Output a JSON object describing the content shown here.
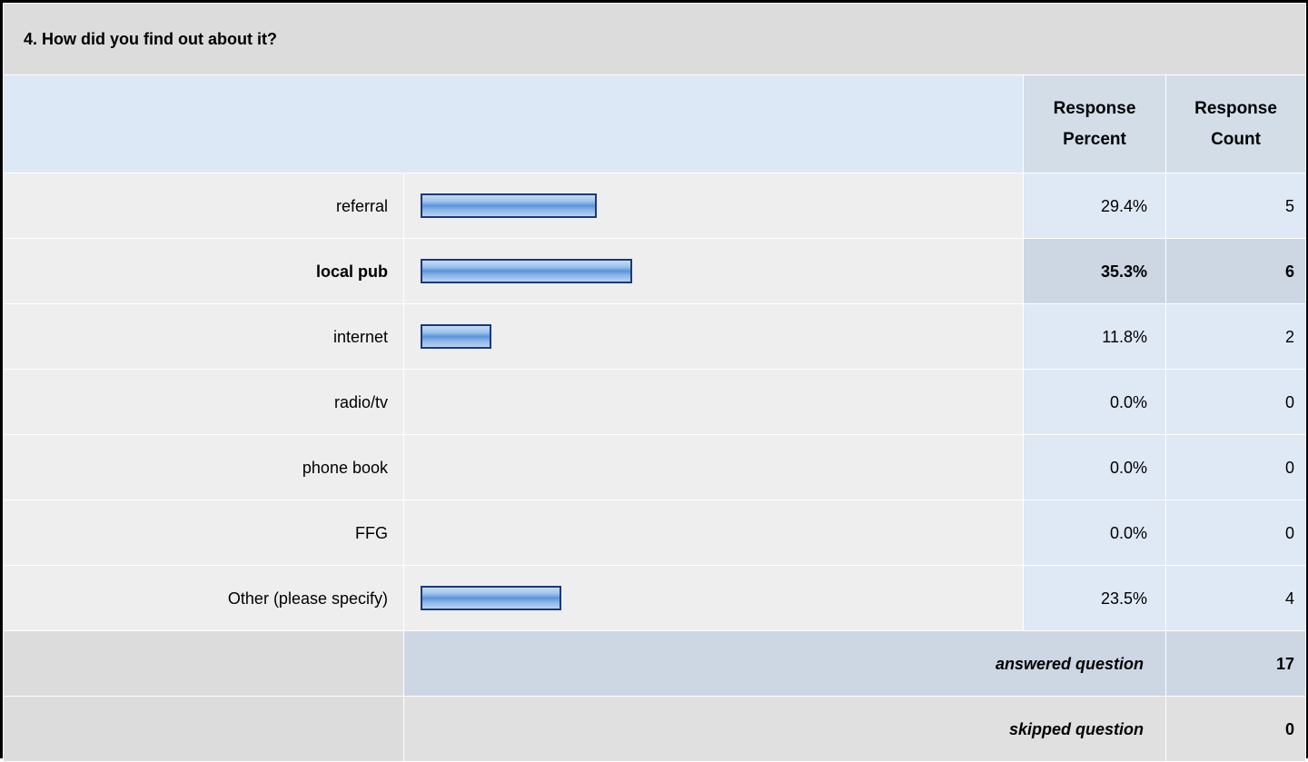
{
  "question_title": "4. How did you find out about it?",
  "columns": {
    "percent": [
      "Response",
      "Percent"
    ],
    "count": [
      "Response",
      "Count"
    ]
  },
  "rows": [
    {
      "label": "referral",
      "percent": "29.4%",
      "count": "5"
    },
    {
      "label": "local pub",
      "percent": "35.3%",
      "count": "6"
    },
    {
      "label": "internet",
      "percent": "11.8%",
      "count": "2"
    },
    {
      "label": "radio/tv",
      "percent": "0.0%",
      "count": "0"
    },
    {
      "label": "phone book",
      "percent": "0.0%",
      "count": "0"
    },
    {
      "label": "FFG",
      "percent": "0.0%",
      "count": "0"
    },
    {
      "label": "Other (please specify)",
      "percent": "23.5%",
      "count": "4"
    }
  ],
  "footer": {
    "answered_label": "answered question",
    "answered_value": "17",
    "skipped_label": "skipped question",
    "skipped_value": "0"
  },
  "colors": {
    "bar_border": "#1c3a78",
    "bar_fill": "#5c93db",
    "header_bg": "#dde8f6",
    "row_bg": "#eeeeee"
  },
  "chart_data": {
    "type": "bar",
    "orientation": "horizontal",
    "title": "4. How did you find out about it?",
    "categories": [
      "referral",
      "local pub",
      "internet",
      "radio/tv",
      "phone book",
      "FFG",
      "Other (please specify)"
    ],
    "series": [
      {
        "values": [
          29.4,
          35.3,
          11.8,
          0.0,
          0.0,
          0.0,
          23.5
        ]
      }
    ],
    "counts": [
      5,
      6,
      2,
      0,
      0,
      0,
      4
    ],
    "xlim": [
      0,
      100
    ],
    "highlighted_category": "local pub",
    "grid": false,
    "legend": "none"
  }
}
